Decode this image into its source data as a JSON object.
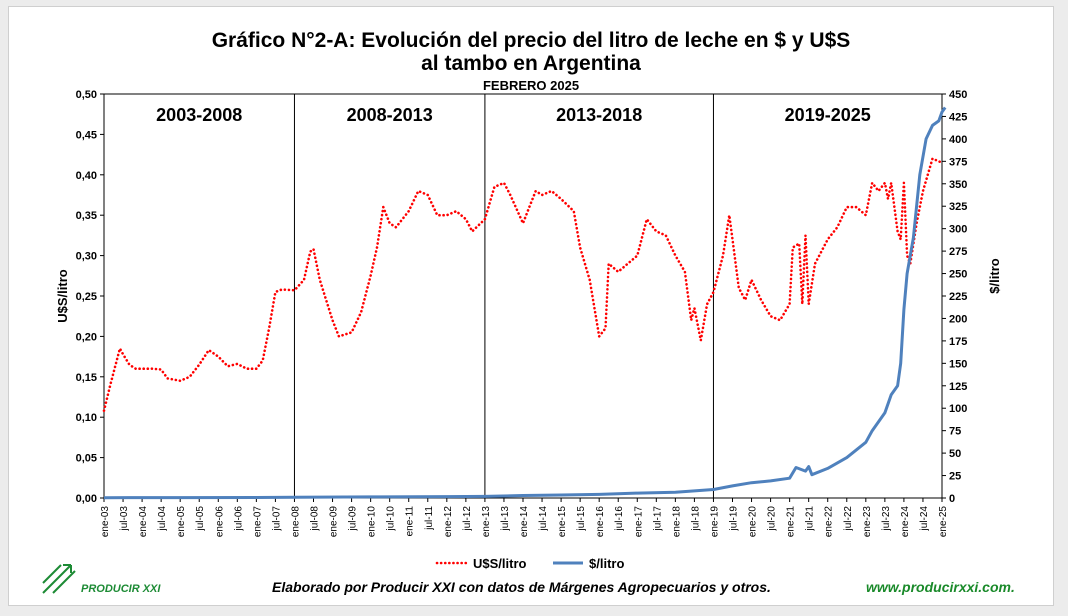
{
  "title": "Gráfico N°2-A: Evolución del precio del litro de leche en $ y U$S",
  "title_line2": "al tambo en Argentina",
  "subtitle": "FEBRERO 2025",
  "footer": {
    "credit": "Elaborado por Producir XXI con datos de Márgenes Agropecuarios y otros.",
    "url": "www.producirxxi.com.",
    "logo_text": "PRODUCIR XXI"
  },
  "colors": {
    "usd_series": "#ff0000",
    "ars_series": "#4f81bd",
    "footer_url": "#1a8a2a",
    "logo": "#1d8b35"
  },
  "chart_data": {
    "type": "line",
    "x_tick_labels": [
      "ene-03",
      "jul-03",
      "ene-04",
      "jul-04",
      "ene-05",
      "jul-05",
      "ene-06",
      "jul-06",
      "ene-07",
      "jul-07",
      "ene-08",
      "jul-08",
      "ene-09",
      "jul-09",
      "ene-10",
      "jul-10",
      "ene-11",
      "jul-11",
      "ene-12",
      "jul-12",
      "ene-13",
      "jul-13",
      "ene-14",
      "jul-14",
      "ene-15",
      "jul-15",
      "ene-16",
      "jul-16",
      "ene-17",
      "jul-17",
      "ene-18",
      "jul-18",
      "ene-19",
      "jul-19",
      "ene-20",
      "jul-20",
      "ene-21",
      "jul-21",
      "ene-22",
      "jul-22",
      "ene-23",
      "jul-23",
      "ene-24",
      "jul-24",
      "ene-25"
    ],
    "y_left": {
      "label": "U$S/litro",
      "min": 0,
      "max": 0.5,
      "ticks": [
        "0,00",
        "0,05",
        "0,10",
        "0,15",
        "0,20",
        "0,25",
        "0,30",
        "0,35",
        "0,40",
        "0,45",
        "0,50"
      ]
    },
    "y_right": {
      "label": "$/litro",
      "min": 0,
      "max": 450,
      "ticks": [
        "0",
        "25",
        "50",
        "75",
        "100",
        "125",
        "150",
        "175",
        "200",
        "225",
        "250",
        "275",
        "300",
        "325",
        "350",
        "375",
        "400",
        "425",
        "450"
      ]
    },
    "periods": [
      {
        "label": "2003-2008",
        "from": "ene-03",
        "to": "ene-08"
      },
      {
        "label": "2008-2013",
        "from": "ene-08",
        "to": "ene-13"
      },
      {
        "label": "2013-2018",
        "from": "ene-13",
        "to": "ene-19"
      },
      {
        "label": "2019-2025",
        "from": "ene-19",
        "to": "ene-25"
      }
    ],
    "period_boundaries": [
      "ene-08",
      "ene-13",
      "ene-19"
    ],
    "series": [
      {
        "name": "U$S/litro",
        "axis": "left",
        "style": "dotted",
        "points": [
          [
            "ene-03",
            0.108
          ],
          [
            "mar-03",
            0.14
          ],
          [
            "may-03",
            0.17
          ],
          [
            "jun-03",
            0.185
          ],
          [
            "jul-03",
            0.178
          ],
          [
            "sep-03",
            0.165
          ],
          [
            "nov-03",
            0.16
          ],
          [
            "ene-04",
            0.16
          ],
          [
            "abr-04",
            0.16
          ],
          [
            "jul-04",
            0.159
          ],
          [
            "sep-04",
            0.148
          ],
          [
            "ene-05",
            0.145
          ],
          [
            "abr-05",
            0.15
          ],
          [
            "jul-05",
            0.165
          ],
          [
            "oct-05",
            0.183
          ],
          [
            "ene-06",
            0.175
          ],
          [
            "abr-06",
            0.163
          ],
          [
            "jul-06",
            0.166
          ],
          [
            "oct-06",
            0.16
          ],
          [
            "ene-07",
            0.16
          ],
          [
            "mar-07",
            0.17
          ],
          [
            "may-07",
            0.21
          ],
          [
            "jul-07",
            0.255
          ],
          [
            "sep-07",
            0.258
          ],
          [
            "ene-08",
            0.257
          ],
          [
            "abr-08",
            0.27
          ],
          [
            "jun-08",
            0.305
          ],
          [
            "jul-08",
            0.308
          ],
          [
            "sep-08",
            0.27
          ],
          [
            "ene-09",
            0.22
          ],
          [
            "mar-09",
            0.2
          ],
          [
            "jul-09",
            0.205
          ],
          [
            "oct-09",
            0.23
          ],
          [
            "ene-10",
            0.275
          ],
          [
            "mar-10",
            0.31
          ],
          [
            "may-10",
            0.36
          ],
          [
            "jul-10",
            0.34
          ],
          [
            "sep-10",
            0.335
          ],
          [
            "ene-11",
            0.355
          ],
          [
            "abr-11",
            0.38
          ],
          [
            "jul-11",
            0.375
          ],
          [
            "oct-11",
            0.35
          ],
          [
            "ene-12",
            0.35
          ],
          [
            "abr-12",
            0.355
          ],
          [
            "jul-12",
            0.345
          ],
          [
            "sep-12",
            0.33
          ],
          [
            "ene-13",
            0.345
          ],
          [
            "abr-13",
            0.385
          ],
          [
            "jul-13",
            0.39
          ],
          [
            "sep-13",
            0.375
          ],
          [
            "ene-14",
            0.34
          ],
          [
            "mar-14",
            0.36
          ],
          [
            "may-14",
            0.38
          ],
          [
            "jul-14",
            0.375
          ],
          [
            "oct-14",
            0.38
          ],
          [
            "ene-15",
            0.37
          ],
          [
            "may-15",
            0.355
          ],
          [
            "jul-15",
            0.31
          ],
          [
            "oct-15",
            0.27
          ],
          [
            "ene-16",
            0.2
          ],
          [
            "mar-16",
            0.21
          ],
          [
            "abr-16",
            0.29
          ],
          [
            "jul-16",
            0.28
          ],
          [
            "ene-17",
            0.3
          ],
          [
            "abr-17",
            0.345
          ],
          [
            "jul-17",
            0.33
          ],
          [
            "oct-17",
            0.325
          ],
          [
            "ene-18",
            0.3
          ],
          [
            "abr-18",
            0.28
          ],
          [
            "jun-18",
            0.22
          ],
          [
            "jul-18",
            0.235
          ],
          [
            "sep-18",
            0.195
          ],
          [
            "nov-18",
            0.24
          ],
          [
            "ene-19",
            0.255
          ],
          [
            "abr-19",
            0.3
          ],
          [
            "jun-19",
            0.35
          ],
          [
            "jul-19",
            0.32
          ],
          [
            "sep-19",
            0.26
          ],
          [
            "nov-19",
            0.245
          ],
          [
            "ene-20",
            0.27
          ],
          [
            "abr-20",
            0.245
          ],
          [
            "jul-20",
            0.225
          ],
          [
            "oct-20",
            0.22
          ],
          [
            "ene-21",
            0.24
          ],
          [
            "feb-21",
            0.31
          ],
          [
            "abr-21",
            0.315
          ],
          [
            "may-21",
            0.24
          ],
          [
            "jun-21",
            0.325
          ],
          [
            "jul-21",
            0.24
          ],
          [
            "sep-21",
            0.29
          ],
          [
            "ene-22",
            0.32
          ],
          [
            "abr-22",
            0.335
          ],
          [
            "jul-22",
            0.36
          ],
          [
            "oct-22",
            0.36
          ],
          [
            "ene-23",
            0.35
          ],
          [
            "mar-23",
            0.39
          ],
          [
            "may-23",
            0.38
          ],
          [
            "jul-23",
            0.39
          ],
          [
            "ago-23",
            0.37
          ],
          [
            "sep-23",
            0.39
          ],
          [
            "oct-23",
            0.36
          ],
          [
            "nov-23",
            0.33
          ],
          [
            "dic-23",
            0.32
          ],
          [
            "ene-24",
            0.39
          ],
          [
            "feb-24",
            0.3
          ],
          [
            "mar-24",
            0.29
          ],
          [
            "may-24",
            0.34
          ],
          [
            "jul-24",
            0.38
          ],
          [
            "oct-24",
            0.42
          ],
          [
            "ene-25",
            0.415
          ]
        ]
      },
      {
        "name": "$/litro",
        "axis": "right",
        "style": "solid",
        "points": [
          [
            "ene-03",
            0.3
          ],
          [
            "ene-05",
            0.4
          ],
          [
            "ene-07",
            0.55
          ],
          [
            "ene-08",
            0.8
          ],
          [
            "ene-10",
            1.2
          ],
          [
            "ene-12",
            1.6
          ],
          [
            "ene-13",
            1.8
          ],
          [
            "ene-14",
            2.8
          ],
          [
            "ene-15",
            3.3
          ],
          [
            "ene-16",
            4.0
          ],
          [
            "ene-17",
            5.5
          ],
          [
            "ene-18",
            6.5
          ],
          [
            "ene-19",
            9.5
          ],
          [
            "jul-19",
            13.5
          ],
          [
            "ene-20",
            17
          ],
          [
            "jul-20",
            19
          ],
          [
            "ene-21",
            22
          ],
          [
            "mar-21",
            34
          ],
          [
            "jun-21",
            30
          ],
          [
            "jul-21",
            35
          ],
          [
            "ago-21",
            26
          ],
          [
            "ene-22",
            33
          ],
          [
            "jul-22",
            45
          ],
          [
            "ene-23",
            62
          ],
          [
            "mar-23",
            75
          ],
          [
            "jul-23",
            95
          ],
          [
            "sep-23",
            115
          ],
          [
            "nov-23",
            125
          ],
          [
            "dic-23",
            150
          ],
          [
            "ene-24",
            210
          ],
          [
            "feb-24",
            250
          ],
          [
            "abr-24",
            290
          ],
          [
            "jun-24",
            360
          ],
          [
            "ago-24",
            400
          ],
          [
            "oct-24",
            415
          ],
          [
            "dic-24",
            420
          ],
          [
            "ene-25",
            430
          ],
          [
            "feb-25",
            435
          ]
        ]
      }
    ]
  }
}
